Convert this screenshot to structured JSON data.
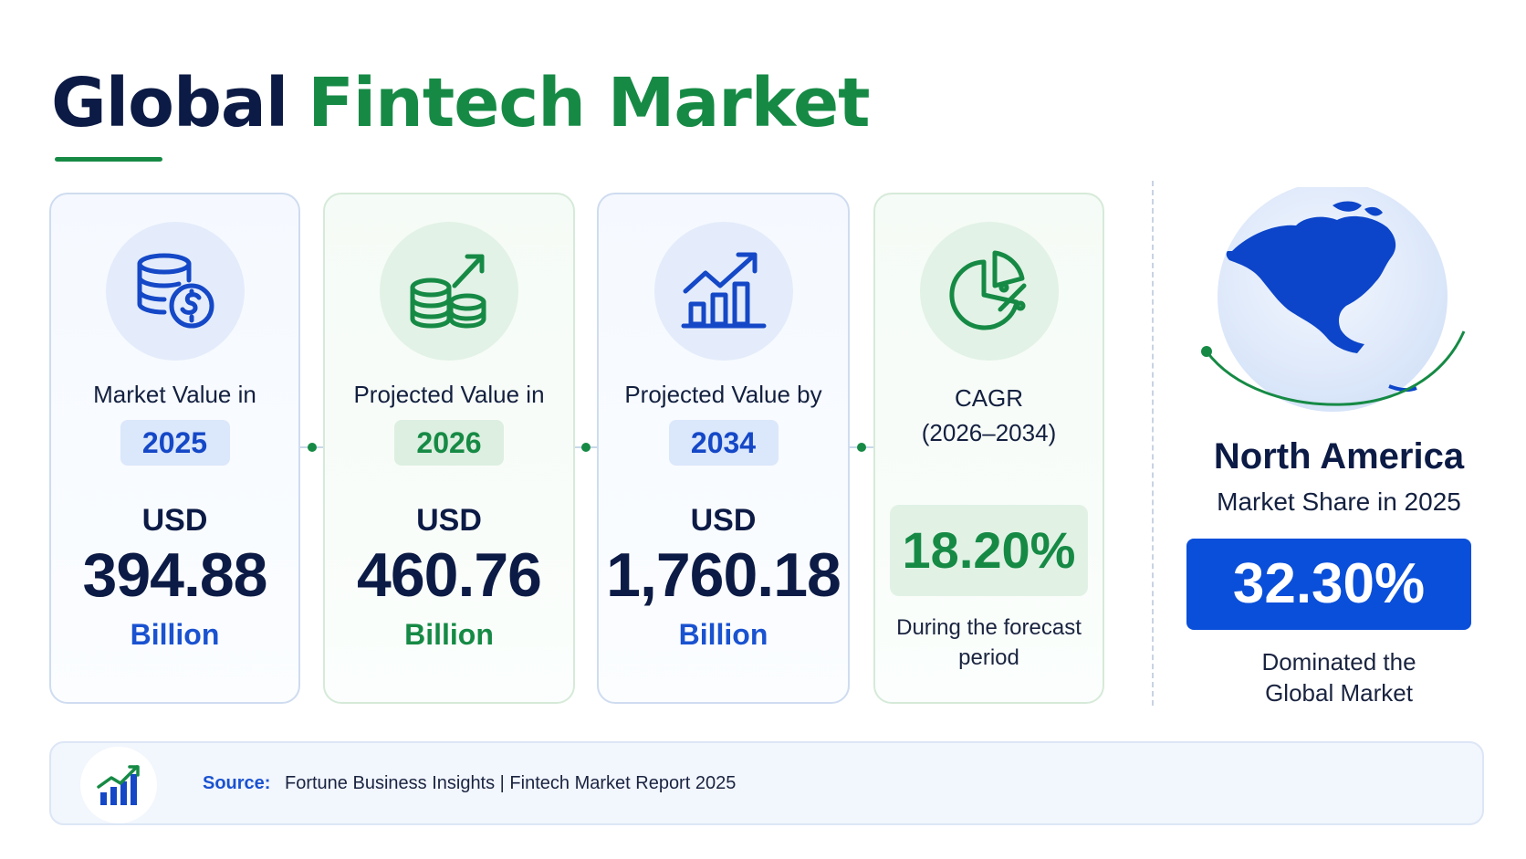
{
  "title": {
    "part1": "Global",
    "part2": "Fintech Market"
  },
  "cards": [
    {
      "label": "Market Value in",
      "year": "2025",
      "currency": "USD",
      "value": "394.88",
      "unit": "Billion",
      "icon": "coins-dollar-icon"
    },
    {
      "label": "Projected Value in",
      "year": "2026",
      "currency": "USD",
      "value": "460.76",
      "unit": "Billion",
      "icon": "coins-growth-icon"
    },
    {
      "label": "Projected Value by",
      "year": "2034",
      "currency": "USD",
      "value": "1,760.18",
      "unit": "Billion",
      "icon": "bar-chart-growth-icon"
    }
  ],
  "cagr": {
    "label": "CAGR",
    "period": "(2026–2034)",
    "value": "18.20%",
    "note": "During the forecast period",
    "icon": "pie-percent-icon"
  },
  "region": {
    "name": "North America",
    "subtitle": "Market Share in 2025",
    "share": "32.30%",
    "note_line1": "Dominated the",
    "note_line2": "Global Market",
    "icon": "globe-north-america-icon"
  },
  "source": {
    "label": "Source:",
    "text": "Fortune Business Insights  |  Fintech Market Report 2025",
    "icon": "bar-chart-icon"
  },
  "colors": {
    "navy": "#0c1b45",
    "green": "#168a45",
    "blue": "#1a52d0",
    "share_bg": "#0a4fd9"
  }
}
